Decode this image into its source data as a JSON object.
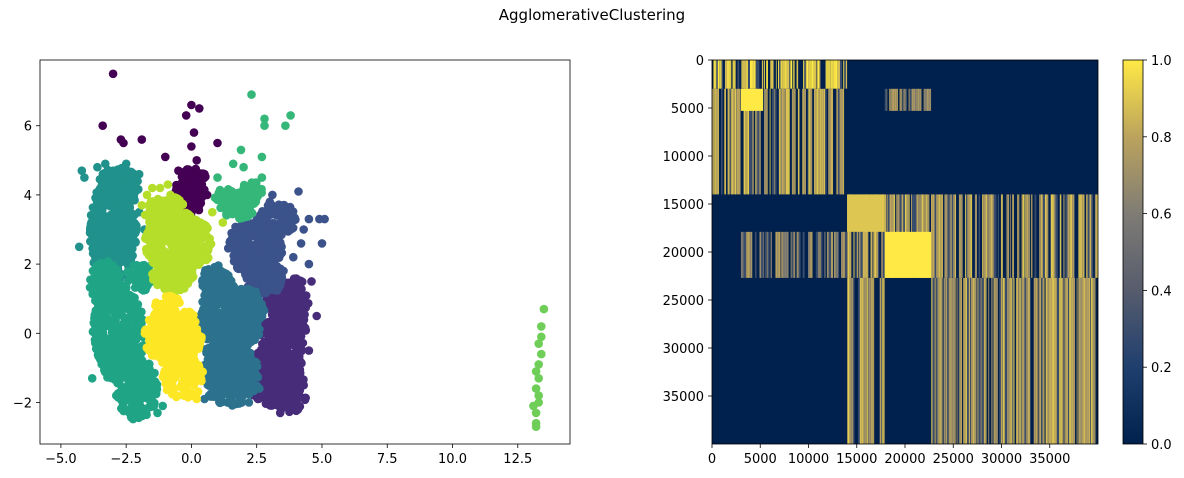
{
  "figure": {
    "title": "AgglomerativeClustering"
  },
  "chart_data": [
    {
      "type": "scatter",
      "title": "",
      "xlabel": "",
      "ylabel": "",
      "xlim": [
        -5.8,
        14.5
      ],
      "ylim": [
        -3.2,
        7.9
      ],
      "xticks": [
        -5.0,
        -2.5,
        0.0,
        2.5,
        5.0,
        7.5,
        10.0,
        12.5
      ],
      "xtick_labels": [
        "−5.0",
        "−2.5",
        "0.0",
        "2.5",
        "5.0",
        "7.5",
        "10.0",
        "12.5"
      ],
      "yticks": [
        -2,
        0,
        2,
        4,
        6
      ],
      "ytick_labels": [
        "−2",
        "0",
        "2",
        "4",
        "6"
      ],
      "grid": false,
      "legend": "none",
      "colormap": "viridis",
      "series": [
        {
          "cluster": 0,
          "color": "#440154",
          "points": [
            [
              -3.0,
              7.5
            ],
            [
              0.0,
              6.6
            ],
            [
              0.3,
              6.5
            ],
            [
              -0.2,
              6.3
            ],
            [
              -2.7,
              5.6
            ],
            [
              -3.4,
              6.0
            ],
            [
              0.1,
              5.8
            ],
            [
              1.0,
              5.5
            ],
            [
              -1.9,
              5.6
            ],
            [
              -2.6,
              5.5
            ],
            [
              -1.0,
              5.1
            ],
            [
              0.0,
              5.4
            ],
            [
              0.2,
              5.0
            ],
            [
              -0.5,
              4.7
            ],
            [
              0.5,
              4.6
            ],
            [
              -0.3,
              4.4
            ],
            [
              0.4,
              4.3
            ],
            [
              -0.6,
              4.1
            ],
            [
              0.6,
              4.0
            ],
            [
              0.0,
              3.9
            ],
            [
              -0.4,
              3.7
            ],
            [
              0.3,
              3.7
            ]
          ],
          "regions": [
            [
              0.0,
              4.3,
              0.6,
              0.5
            ],
            [
              -0.1,
              3.8,
              0.55,
              0.35
            ]
          ]
        },
        {
          "cluster": 1,
          "color": "#472c7a",
          "points": [
            [
              3.4,
              -2.3
            ],
            [
              4.3,
              -1.5
            ],
            [
              4.5,
              -0.5
            ],
            [
              4.8,
              0.5
            ],
            [
              4.6,
              1.5
            ],
            [
              3.9,
              1.2
            ],
            [
              3.0,
              2.2
            ]
          ],
          "regions": [
            [
              3.5,
              0.2,
              0.9,
              1.3
            ],
            [
              3.2,
              -1.2,
              1.1,
              0.9
            ],
            [
              3.9,
              1.0,
              0.6,
              0.6
            ],
            [
              3.8,
              -1.9,
              0.6,
              0.4
            ]
          ]
        },
        {
          "cluster": 2,
          "color": "#3b528b",
          "points": [
            [
              4.1,
              4.1
            ],
            [
              4.9,
              3.3
            ],
            [
              4.5,
              3.3
            ],
            [
              5.1,
              3.3
            ],
            [
              5.0,
              2.6
            ],
            [
              4.2,
              2.6
            ],
            [
              3.0,
              3.8
            ],
            [
              3.5,
              3.7
            ],
            [
              4.3,
              3.0
            ],
            [
              3.9,
              2.2
            ],
            [
              4.5,
              2.0
            ],
            [
              2.4,
              4.3
            ],
            [
              3.1,
              4.0
            ]
          ],
          "regions": [
            [
              2.4,
              2.5,
              1.1,
              0.8
            ],
            [
              3.3,
              3.3,
              0.7,
              0.5
            ],
            [
              2.8,
              1.6,
              0.8,
              0.5
            ]
          ]
        },
        {
          "cluster": 3,
          "color": "#2c728e",
          "points": [
            [
              0.5,
              -1.9
            ],
            [
              1.5,
              -1.8
            ],
            [
              2.2,
              -2.0
            ],
            [
              2.6,
              -1.6
            ]
          ],
          "regions": [
            [
              1.3,
              0.3,
              1.0,
              1.4
            ],
            [
              1.5,
              -1.2,
              1.1,
              0.9
            ],
            [
              0.9,
              1.5,
              0.5,
              0.5
            ],
            [
              2.2,
              0.5,
              0.6,
              0.8
            ]
          ]
        },
        {
          "cluster": 4,
          "color": "#21918c",
          "points": [
            [
              -4.2,
              4.7
            ],
            [
              -4.1,
              4.5
            ],
            [
              -3.6,
              4.8
            ],
            [
              -3.3,
              4.9
            ],
            [
              -3.0,
              4.7
            ],
            [
              -2.5,
              4.9
            ],
            [
              -2.0,
              4.6
            ],
            [
              -2.2,
              4.3
            ],
            [
              -3.8,
              3.2
            ],
            [
              -4.3,
              2.5
            ],
            [
              -2.0,
              3.5
            ],
            [
              -1.8,
              3.0
            ]
          ],
          "regions": [
            [
              -3.0,
              3.0,
              0.9,
              1.5
            ],
            [
              -2.8,
              4.2,
              0.8,
              0.6
            ],
            [
              -3.3,
              2.2,
              0.5,
              0.4
            ]
          ]
        },
        {
          "cluster": 5,
          "color": "#20a486",
          "points": [
            [
              -2.0,
              -2.4
            ],
            [
              -1.3,
              -2.3
            ],
            [
              -1.1,
              -2.1
            ],
            [
              -3.8,
              -1.3
            ],
            [
              -1.5,
              2.0
            ]
          ],
          "regions": [
            [
              -2.8,
              0.0,
              1.0,
              1.4
            ],
            [
              -2.1,
              -1.6,
              0.8,
              0.9
            ],
            [
              -3.3,
              1.4,
              0.6,
              0.7
            ],
            [
              -2.0,
              1.6,
              0.5,
              0.4
            ]
          ]
        },
        {
          "cluster": 6,
          "color": "#35b779",
          "points": [
            [
              2.3,
              6.9
            ],
            [
              2.8,
              6.2
            ],
            [
              2.8,
              6.0
            ],
            [
              3.6,
              6.0
            ],
            [
              3.8,
              6.3
            ],
            [
              1.9,
              5.3
            ],
            [
              2.7,
              5.1
            ],
            [
              1.6,
              4.9
            ],
            [
              1.0,
              4.5
            ],
            [
              2.0,
              4.8
            ],
            [
              2.7,
              4.5
            ]
          ],
          "regions": [
            [
              1.8,
              3.7,
              0.7,
              0.4
            ],
            [
              2.3,
              4.1,
              0.4,
              0.3
            ],
            [
              1.3,
              3.9,
              0.4,
              0.3
            ]
          ]
        },
        {
          "cluster": 7,
          "color": "#6ece58",
          "points": [
            [
              13.5,
              0.7
            ],
            [
              13.4,
              0.2
            ],
            [
              13.3,
              -0.3
            ],
            [
              13.4,
              -0.6
            ],
            [
              13.3,
              -0.9
            ],
            [
              13.3,
              -1.3
            ],
            [
              13.2,
              -1.6
            ],
            [
              13.3,
              -2.0
            ],
            [
              13.1,
              -2.1
            ],
            [
              13.2,
              -2.3
            ],
            [
              13.2,
              -2.6
            ],
            [
              13.2,
              -2.7
            ],
            [
              13.4,
              -0.1
            ],
            [
              13.2,
              -1.1
            ],
            [
              13.3,
              -1.8
            ]
          ],
          "regions": []
        },
        {
          "cluster": 8,
          "color": "#b5de2b",
          "points": [
            [
              -1.7,
              4.0
            ],
            [
              -1.5,
              4.2
            ],
            [
              -1.2,
              4.2
            ],
            [
              -0.9,
              4.3
            ],
            [
              -1.9,
              3.7
            ],
            [
              -0.8,
              4.0
            ],
            [
              0.8,
              3.5
            ],
            [
              1.2,
              3.2
            ]
          ],
          "regions": [
            [
              -0.5,
              2.6,
              1.3,
              0.9
            ],
            [
              -0.7,
              1.7,
              0.8,
              0.5
            ],
            [
              -1.0,
              3.5,
              0.8,
              0.5
            ]
          ]
        },
        {
          "cluster": 9,
          "color": "#fde725",
          "points": [
            [
              -0.3,
              -1.8
            ],
            [
              0.2,
              -1.9
            ]
          ],
          "regions": [
            [
              -0.7,
              -0.1,
              1.1,
              0.9
            ],
            [
              -0.3,
              -1.3,
              0.8,
              0.6
            ],
            [
              -0.9,
              0.8,
              0.5,
              0.3
            ]
          ]
        }
      ]
    },
    {
      "type": "heatmap",
      "title": "",
      "xlabel": "",
      "ylabel": "",
      "extent": [
        0,
        40000
      ],
      "xticks": [
        0,
        5000,
        10000,
        15000,
        20000,
        25000,
        30000,
        35000
      ],
      "xtick_labels": [
        "0",
        "5000",
        "10000",
        "15000",
        "20000",
        "25000",
        "30000",
        "35000"
      ],
      "yticks": [
        0,
        5000,
        10000,
        15000,
        20000,
        25000,
        30000,
        35000
      ],
      "ytick_labels": [
        "0",
        "5000",
        "10000",
        "15000",
        "20000",
        "25000",
        "30000",
        "35000"
      ],
      "y_inverted": true,
      "colormap": "cividis",
      "colorbar": {
        "range": [
          0.0,
          1.0
        ],
        "ticks": [
          0.0,
          0.2,
          0.4,
          0.6,
          0.8,
          1.0
        ],
        "tick_labels": [
          "0.0",
          "0.2",
          "0.4",
          "0.6",
          "0.8",
          "1.0"
        ]
      },
      "blocks": [
        {
          "range": [
            0,
            3000
          ],
          "columns": [
            0,
            14000
          ],
          "value": 1.0,
          "striped": true
        },
        {
          "range": [
            3000,
            14000
          ],
          "columns": [
            0,
            14000
          ],
          "value": 0.8,
          "striped": true
        },
        {
          "range": [
            3000,
            5300
          ],
          "columns": [
            3000,
            5300
          ],
          "value": 1.0,
          "striped": false
        },
        {
          "range": [
            3000,
            5300
          ],
          "columns": [
            17900,
            22700
          ],
          "value": 0.7,
          "striped": true
        },
        {
          "range": [
            14000,
            22700
          ],
          "columns": [
            14000,
            40000
          ],
          "value": 0.8,
          "striped": true
        },
        {
          "range": [
            17900,
            22700
          ],
          "columns": [
            17900,
            22700
          ],
          "value": 1.0,
          "striped": false
        },
        {
          "range": [
            14000,
            17900
          ],
          "columns": [
            14000,
            17900
          ],
          "value": 0.9,
          "striped": false
        },
        {
          "range": [
            17900,
            22700
          ],
          "columns": [
            3000,
            14000
          ],
          "value": 0.7,
          "striped": true
        },
        {
          "range": [
            22700,
            40000
          ],
          "columns": [
            14000,
            17900
          ],
          "value": 0.8,
          "striped": true
        },
        {
          "range": [
            22700,
            40000
          ],
          "columns": [
            22700,
            40000
          ],
          "value": 0.8,
          "striped": true
        }
      ]
    }
  ]
}
